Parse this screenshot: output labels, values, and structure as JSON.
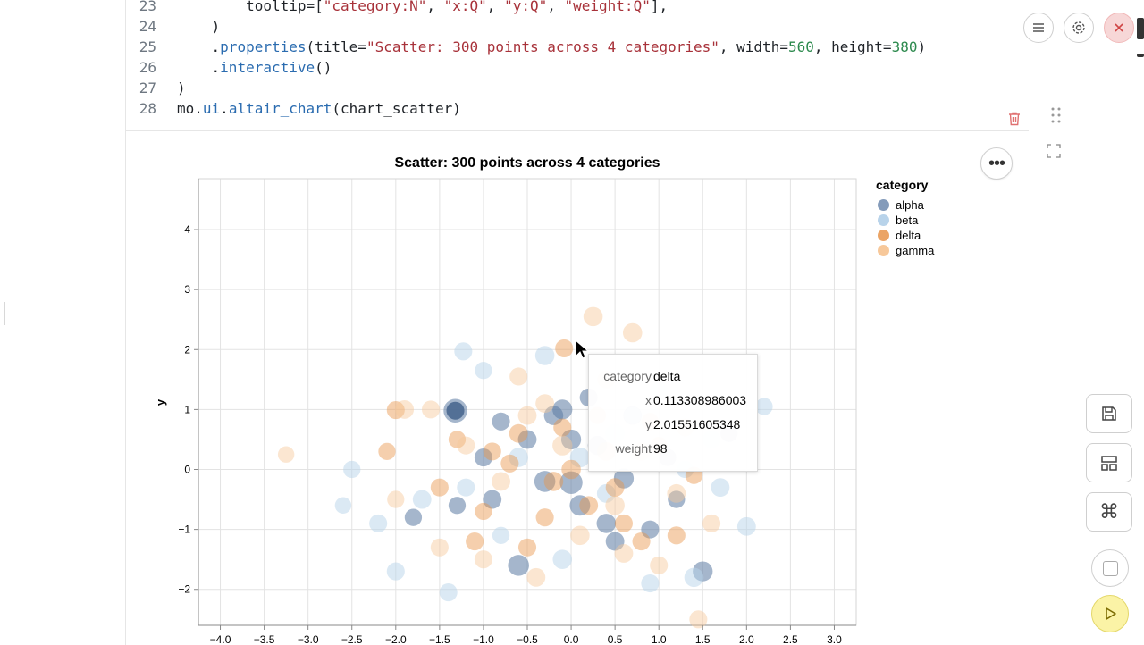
{
  "editor": {
    "lines": [
      {
        "num": "23",
        "html_parts": [
          {
            "t": "        tooltip=[",
            "c": ""
          },
          {
            "t": "\"category:N\"",
            "c": "str"
          },
          {
            "t": ", ",
            "c": ""
          },
          {
            "t": "\"x:Q\"",
            "c": "str"
          },
          {
            "t": ", ",
            "c": ""
          },
          {
            "t": "\"y:Q\"",
            "c": "str"
          },
          {
            "t": ", ",
            "c": ""
          },
          {
            "t": "\"weight:Q\"",
            "c": "str"
          },
          {
            "t": "],",
            "c": ""
          }
        ]
      },
      {
        "num": "24",
        "html_parts": [
          {
            "t": "    )",
            "c": ""
          }
        ]
      },
      {
        "num": "25",
        "html_parts": [
          {
            "t": "    .",
            "c": ""
          },
          {
            "t": "properties",
            "c": "attr"
          },
          {
            "t": "(title=",
            "c": ""
          },
          {
            "t": "\"Scatter: 300 points across 4 categories\"",
            "c": "str"
          },
          {
            "t": ", width=",
            "c": ""
          },
          {
            "t": "560",
            "c": "num"
          },
          {
            "t": ", height=",
            "c": ""
          },
          {
            "t": "380",
            "c": "num"
          },
          {
            "t": ")",
            "c": ""
          }
        ]
      },
      {
        "num": "26",
        "html_parts": [
          {
            "t": "    .",
            "c": ""
          },
          {
            "t": "interactive",
            "c": "attr"
          },
          {
            "t": "()",
            "c": ""
          }
        ]
      },
      {
        "num": "27",
        "html_parts": [
          {
            "t": ")",
            "c": ""
          }
        ]
      },
      {
        "num": "28",
        "html_parts": [
          {
            "t": "mo.",
            "c": ""
          },
          {
            "t": "ui",
            "c": "attr"
          },
          {
            "t": ".",
            "c": ""
          },
          {
            "t": "altair_chart",
            "c": "attr"
          },
          {
            "t": "(chart_scatter)",
            "c": ""
          }
        ]
      }
    ]
  },
  "icons": {
    "delete": "trash-icon",
    "drag": "drag-handle-icon",
    "expand": "expand-icon",
    "menu": "hamburger-menu-icon",
    "settings": "gear-icon",
    "close": "close-icon",
    "save": "save-icon",
    "layout": "layout-icon",
    "command": "command-icon",
    "stop": "stop-icon",
    "run": "run-icon",
    "more": "more-options-icon"
  },
  "colors": {
    "alpha": "#5b7aa3",
    "beta": "#b8d3ea",
    "delta": "#e8944a",
    "gamma": "#f7c89a",
    "close_bg": "#f7d7d7",
    "run_bg": "#fbf3a6"
  },
  "chart_data": {
    "type": "scatter",
    "title": "Scatter: 300 points across 4 categories",
    "xlabel": "",
    "ylabel": "y",
    "xlim": [
      -4.25,
      3.25
    ],
    "ylim": [
      -2.6,
      4.85
    ],
    "x_ticks": [
      "−4.0",
      "−3.5",
      "−3.0",
      "−2.5",
      "−2.0",
      "−1.5",
      "−1.0",
      "−0.5",
      "0.0",
      "0.5",
      "1.0",
      "1.5",
      "2.0",
      "2.5",
      "3.0"
    ],
    "y_ticks": [
      "−2",
      "−1",
      "0",
      "1",
      "2",
      "3",
      "4"
    ],
    "grid": true,
    "legend_title": "category",
    "legend_position": "right",
    "series": [
      {
        "name": "alpha",
        "points": [
          [
            -1.32,
            0.98,
            95
          ],
          [
            -0.1,
            1.0,
            60
          ],
          [
            0.0,
            -0.22,
            85
          ],
          [
            -0.6,
            -1.6,
            70
          ],
          [
            0.6,
            -0.15,
            60
          ],
          [
            -0.9,
            -0.5,
            50
          ],
          [
            0.4,
            -0.9,
            55
          ],
          [
            -1.3,
            -0.6,
            40
          ],
          [
            0.9,
            -1.0,
            45
          ],
          [
            1.5,
            -1.7,
            60
          ],
          [
            -0.2,
            0.9,
            55
          ],
          [
            0.1,
            -0.6,
            65
          ],
          [
            -0.5,
            0.5,
            50
          ],
          [
            1.2,
            -0.5,
            40
          ],
          [
            0.3,
            0.4,
            55
          ],
          [
            -0.8,
            0.8,
            45
          ],
          [
            0.7,
            0.9,
            50
          ],
          [
            -1.8,
            -0.8,
            40
          ],
          [
            0.2,
            1.2,
            45
          ],
          [
            1.8,
            0.6,
            40
          ],
          [
            -0.3,
            -0.2,
            70
          ],
          [
            0.5,
            -1.2,
            50
          ],
          [
            1.1,
            0.2,
            40
          ],
          [
            -1.0,
            0.2,
            45
          ],
          [
            0.0,
            0.5,
            60
          ]
        ]
      },
      {
        "name": "beta",
        "points": [
          [
            -1.23,
            1.97,
            45
          ],
          [
            -2.5,
            0.0,
            40
          ],
          [
            -2.6,
            -0.6,
            35
          ],
          [
            -2.0,
            -1.7,
            45
          ],
          [
            -1.4,
            -2.05,
            45
          ],
          [
            2.2,
            1.05,
            40
          ],
          [
            2.0,
            -0.95,
            50
          ],
          [
            1.6,
            0.5,
            45
          ],
          [
            -0.3,
            1.9,
            55
          ],
          [
            0.7,
            0.9,
            40
          ],
          [
            -1.0,
            1.65,
            40
          ],
          [
            1.4,
            -1.8,
            55
          ],
          [
            -1.7,
            -0.5,
            50
          ],
          [
            0.9,
            -1.9,
            45
          ],
          [
            -0.6,
            0.2,
            55
          ],
          [
            0.4,
            -0.4,
            50
          ],
          [
            1.7,
            -0.3,
            50
          ],
          [
            -1.2,
            -0.3,
            45
          ],
          [
            0.1,
            0.2,
            60
          ],
          [
            -0.1,
            -1.5,
            55
          ],
          [
            1.0,
            1.3,
            45
          ],
          [
            -0.8,
            -1.1,
            40
          ],
          [
            0.5,
            0.6,
            55
          ],
          [
            -2.2,
            -0.9,
            45
          ],
          [
            1.3,
            0.0,
            40
          ]
        ]
      },
      {
        "name": "delta",
        "points": [
          [
            -0.08,
            2.02,
            45
          ],
          [
            -2.0,
            0.99,
            45
          ],
          [
            -2.1,
            0.3,
            40
          ],
          [
            -1.5,
            -0.3,
            45
          ],
          [
            -1.1,
            -1.2,
            45
          ],
          [
            -0.6,
            0.6,
            50
          ],
          [
            0.0,
            0.0,
            55
          ],
          [
            0.5,
            -0.3,
            50
          ],
          [
            -0.3,
            -0.8,
            45
          ],
          [
            0.8,
            -1.2,
            45
          ],
          [
            1.0,
            0.4,
            40
          ],
          [
            -0.9,
            0.3,
            45
          ],
          [
            0.3,
            0.9,
            40
          ],
          [
            -0.2,
            -0.2,
            55
          ],
          [
            0.6,
            -0.9,
            45
          ],
          [
            -1.0,
            -0.7,
            40
          ],
          [
            1.4,
            -0.1,
            40
          ],
          [
            -0.5,
            -1.3,
            45
          ],
          [
            0.2,
            -0.6,
            50
          ],
          [
            -0.7,
            0.1,
            45
          ],
          [
            0.9,
            0.8,
            40
          ],
          [
            1.2,
            -1.1,
            45
          ],
          [
            -1.3,
            0.5,
            40
          ],
          [
            0.4,
            0.3,
            50
          ],
          [
            -0.1,
            0.7,
            45
          ]
        ]
      },
      {
        "name": "gamma",
        "points": [
          [
            0.25,
            2.55,
            55
          ],
          [
            0.7,
            2.28,
            55
          ],
          [
            -3.25,
            0.25,
            35
          ],
          [
            1.45,
            -2.5,
            45
          ],
          [
            -1.9,
            1.0,
            50
          ],
          [
            1.2,
            -0.4,
            50
          ],
          [
            -0.6,
            1.55,
            45
          ],
          [
            -0.1,
            0.4,
            60
          ],
          [
            0.5,
            -0.6,
            55
          ],
          [
            -1.5,
            -1.3,
            45
          ],
          [
            -1.6,
            1.0,
            45
          ],
          [
            -0.4,
            -1.8,
            50
          ],
          [
            1.0,
            -1.6,
            45
          ],
          [
            0.8,
            0.3,
            50
          ],
          [
            -1.2,
            0.4,
            45
          ],
          [
            0.1,
            -1.1,
            55
          ],
          [
            -0.8,
            -0.2,
            50
          ],
          [
            1.6,
            -0.9,
            45
          ],
          [
            -0.3,
            1.1,
            50
          ],
          [
            0.4,
            1.5,
            45
          ],
          [
            -1.0,
            -1.5,
            45
          ],
          [
            1.3,
            0.7,
            45
          ],
          [
            -2.0,
            -0.5,
            40
          ],
          [
            0.6,
            -1.4,
            50
          ],
          [
            -0.5,
            0.9,
            50
          ]
        ]
      }
    ]
  },
  "chart": {
    "title": "Scatter: 300 points across 4 categories",
    "legend_title": "category",
    "legend": [
      "alpha",
      "beta",
      "delta",
      "gamma"
    ],
    "ylabel": "y"
  },
  "tooltip": {
    "rows": [
      {
        "key": "category",
        "value": "delta"
      },
      {
        "key": "x",
        "value": "0.113308986003"
      },
      {
        "key": "y",
        "value": "2.01551605348"
      },
      {
        "key": "weight",
        "value": "98"
      }
    ]
  }
}
